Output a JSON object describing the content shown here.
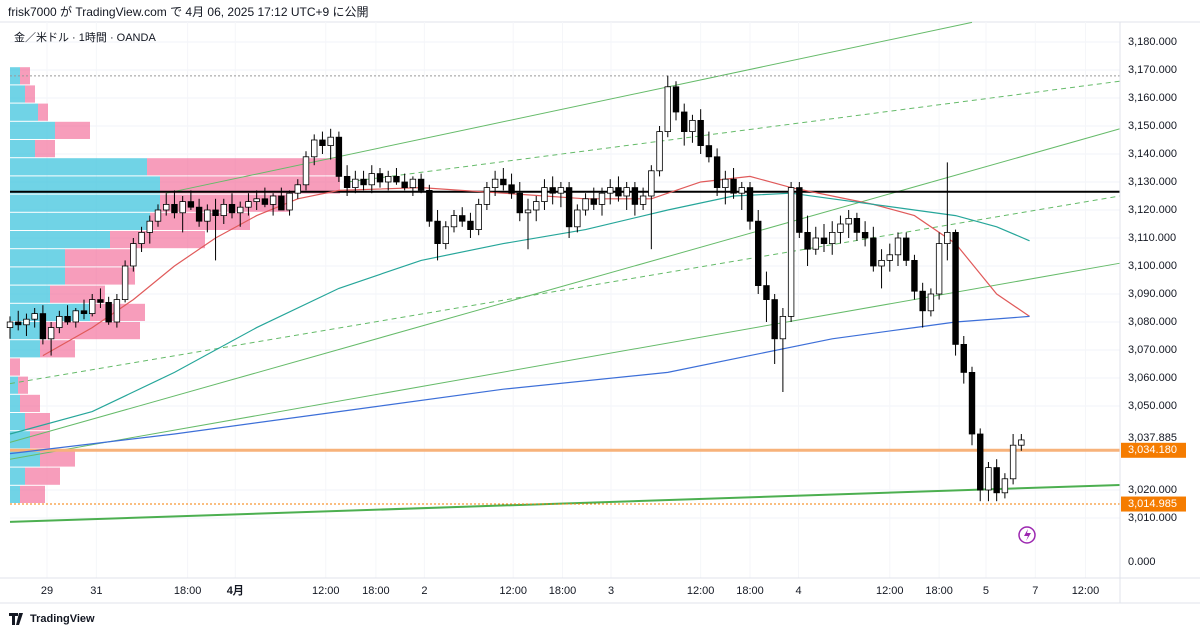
{
  "header": "frisk7000 が TradingView.com で 4月 06, 2025 17:12 UTC+9 に公開",
  "footer": "TradingView",
  "chart_data": {
    "type": "candlestick",
    "title": "金／米ドル · 1時間 · OANDA",
    "xlim": [
      0,
      135
    ],
    "ylim": [
      2988.57,
      3187.14
    ],
    "xticks": [
      {
        "value": 4.5,
        "label": "29"
      },
      {
        "value": 10.5,
        "label": "31"
      },
      {
        "value": 21.6,
        "label": "18:00"
      },
      {
        "value": 27.4,
        "label": "4月"
      },
      {
        "value": 38.4,
        "label": "12:00"
      },
      {
        "value": 44.5,
        "label": "18:00"
      },
      {
        "value": 50.4,
        "label": "2"
      },
      {
        "value": 61.2,
        "label": "12:00"
      },
      {
        "value": 67.2,
        "label": "18:00"
      },
      {
        "value": 73.1,
        "label": "3"
      },
      {
        "value": 84,
        "label": "12:00"
      },
      {
        "value": 90,
        "label": "18:00"
      },
      {
        "value": 95.9,
        "label": "4"
      },
      {
        "value": 107,
        "label": "12:00"
      },
      {
        "value": 113,
        "label": "18:00"
      },
      {
        "value": 118.7,
        "label": "5"
      },
      {
        "value": 124.7,
        "label": "7"
      },
      {
        "value": 130.8,
        "label": "12:00"
      }
    ],
    "yticks": [
      {
        "value": 3180,
        "label": "3,180.000"
      },
      {
        "value": 3170,
        "label": "3,170.000"
      },
      {
        "value": 3160,
        "label": "3,160.000"
      },
      {
        "value": 3150,
        "label": "3,150.000"
      },
      {
        "value": 3140,
        "label": "3,140.000"
      },
      {
        "value": 3130,
        "label": "3,130.000"
      },
      {
        "value": 3120,
        "label": "3,120.000"
      },
      {
        "value": 3110,
        "label": "3,110.000"
      },
      {
        "value": 3100,
        "label": "3,100.000"
      },
      {
        "value": 3090,
        "label": "3,090.000"
      },
      {
        "value": 3080,
        "label": "3,080.000"
      },
      {
        "value": 3070,
        "label": "3,070.000"
      },
      {
        "value": 3060,
        "label": "3,060.000"
      },
      {
        "value": 3050,
        "label": "3,050.000"
      },
      {
        "value": 3020,
        "label": "3,020.000"
      },
      {
        "value": 3010,
        "label": "3,010.000"
      }
    ],
    "volume_axis_ticks": [
      {
        "value": 0,
        "label": "0.000"
      }
    ],
    "grid": true,
    "up_color": "#ffffff",
    "down_color": "#000000",
    "wick_color": "#000000",
    "candles": [
      [
        0,
        3078,
        3082,
        3074,
        3080
      ],
      [
        1,
        3080,
        3084,
        3077,
        3079
      ],
      [
        2,
        3079,
        3083,
        3075,
        3081
      ],
      [
        3,
        3081,
        3085,
        3078,
        3083
      ],
      [
        4,
        3083,
        3086,
        3072,
        3074
      ],
      [
        5,
        3074,
        3080,
        3068,
        3078
      ],
      [
        6,
        3078,
        3084,
        3076,
        3082
      ],
      [
        7,
        3082,
        3086,
        3079,
        3080
      ],
      [
        8,
        3080,
        3085,
        3078,
        3084
      ],
      [
        9,
        3084,
        3088,
        3081,
        3083
      ],
      [
        10,
        3083,
        3090,
        3082,
        3088
      ],
      [
        11,
        3088,
        3092,
        3085,
        3087
      ],
      [
        12,
        3087,
        3089,
        3079,
        3080
      ],
      [
        13,
        3080,
        3090,
        3078,
        3088
      ],
      [
        14,
        3088,
        3102,
        3087,
        3100
      ],
      [
        15,
        3100,
        3110,
        3098,
        3108
      ],
      [
        16,
        3108,
        3114,
        3105,
        3112
      ],
      [
        17,
        3112,
        3118,
        3108,
        3116
      ],
      [
        18,
        3116,
        3122,
        3114,
        3120
      ],
      [
        19,
        3120,
        3126,
        3118,
        3122
      ],
      [
        20,
        3122,
        3127,
        3117,
        3119
      ],
      [
        21,
        3119,
        3125,
        3112,
        3123
      ],
      [
        22,
        3123,
        3127,
        3120,
        3121
      ],
      [
        23,
        3121,
        3124,
        3114,
        3116
      ],
      [
        24,
        3116,
        3122,
        3112,
        3120
      ],
      [
        25,
        3120,
        3124,
        3102,
        3118
      ],
      [
        26,
        3118,
        3124,
        3115,
        3122
      ],
      [
        27,
        3122,
        3126,
        3117,
        3119
      ],
      [
        28,
        3119,
        3123,
        3114,
        3121
      ],
      [
        29,
        3121,
        3126,
        3118,
        3123
      ],
      [
        30,
        3123,
        3127,
        3120,
        3124
      ],
      [
        31,
        3124,
        3128,
        3121,
        3122
      ],
      [
        32,
        3122,
        3126,
        3118,
        3125
      ],
      [
        33,
        3125,
        3128,
        3121,
        3120
      ],
      [
        34,
        3120,
        3127,
        3118,
        3126
      ],
      [
        35,
        3126,
        3131,
        3124,
        3129
      ],
      [
        36,
        3129,
        3141,
        3127,
        3139
      ],
      [
        37,
        3139,
        3147,
        3136,
        3145
      ],
      [
        38,
        3145,
        3148,
        3140,
        3143
      ],
      [
        39,
        3143,
        3149,
        3138,
        3146
      ],
      [
        40,
        3146,
        3148,
        3130,
        3132
      ],
      [
        41,
        3132,
        3136,
        3125,
        3128
      ],
      [
        42,
        3128,
        3134,
        3126,
        3131
      ],
      [
        43,
        3131,
        3134,
        3127,
        3129
      ],
      [
        44,
        3129,
        3136,
        3126,
        3133
      ],
      [
        45,
        3133,
        3135,
        3128,
        3130
      ],
      [
        46,
        3130,
        3134,
        3127,
        3132
      ],
      [
        47,
        3132,
        3135,
        3129,
        3130
      ],
      [
        48,
        3130,
        3133,
        3127,
        3128
      ],
      [
        49,
        3128,
        3132,
        3125,
        3131
      ],
      [
        50,
        3131,
        3133,
        3126,
        3127
      ],
      [
        51,
        3127,
        3129,
        3114,
        3116
      ],
      [
        52,
        3116,
        3120,
        3102,
        3108
      ],
      [
        53,
        3108,
        3116,
        3106,
        3114
      ],
      [
        54,
        3114,
        3120,
        3112,
        3118
      ],
      [
        55,
        3118,
        3121,
        3114,
        3116
      ],
      [
        56,
        3116,
        3119,
        3110,
        3113
      ],
      [
        57,
        3113,
        3124,
        3111,
        3122
      ],
      [
        58,
        3122,
        3130,
        3120,
        3128
      ],
      [
        59,
        3128,
        3134,
        3125,
        3131
      ],
      [
        60,
        3131,
        3135,
        3127,
        3129
      ],
      [
        61,
        3129,
        3133,
        3124,
        3126
      ],
      [
        62,
        3126,
        3130,
        3116,
        3119
      ],
      [
        63,
        3119,
        3124,
        3106,
        3120
      ],
      [
        64,
        3120,
        3125,
        3116,
        3123
      ],
      [
        65,
        3123,
        3131,
        3120,
        3128
      ],
      [
        66,
        3128,
        3132,
        3122,
        3126
      ],
      [
        67,
        3126,
        3130,
        3121,
        3128
      ],
      [
        68,
        3128,
        3130,
        3110,
        3114
      ],
      [
        69,
        3114,
        3122,
        3112,
        3120
      ],
      [
        70,
        3120,
        3126,
        3118,
        3124
      ],
      [
        71,
        3124,
        3128,
        3120,
        3122
      ],
      [
        72,
        3122,
        3128,
        3118,
        3126
      ],
      [
        73,
        3126,
        3131,
        3122,
        3128
      ],
      [
        74,
        3128,
        3132,
        3123,
        3125
      ],
      [
        75,
        3125,
        3130,
        3120,
        3128
      ],
      [
        76,
        3128,
        3130,
        3118,
        3122
      ],
      [
        77,
        3122,
        3128,
        3120,
        3125
      ],
      [
        78,
        3125,
        3136,
        3106,
        3134
      ],
      [
        79,
        3134,
        3150,
        3132,
        3148
      ],
      [
        80,
        3148,
        3168,
        3146,
        3164
      ],
      [
        81,
        3164,
        3166,
        3152,
        3155
      ],
      [
        82,
        3155,
        3158,
        3143,
        3148
      ],
      [
        83,
        3148,
        3154,
        3144,
        3152
      ],
      [
        84,
        3152,
        3156,
        3140,
        3143
      ],
      [
        85,
        3143,
        3148,
        3137,
        3139
      ],
      [
        86,
        3139,
        3142,
        3125,
        3128
      ],
      [
        87,
        3128,
        3134,
        3122,
        3131
      ],
      [
        88,
        3131,
        3135,
        3124,
        3126
      ],
      [
        89,
        3126,
        3130,
        3120,
        3128
      ],
      [
        90,
        3128,
        3130,
        3113,
        3116
      ],
      [
        91,
        3116,
        3120,
        3090,
        3093
      ],
      [
        92,
        3093,
        3098,
        3080,
        3088
      ],
      [
        93,
        3088,
        3090,
        3065,
        3074
      ],
      [
        94,
        3074,
        3085,
        3055,
        3082
      ],
      [
        95,
        3082,
        3130,
        3080,
        3128
      ],
      [
        96,
        3128,
        3130,
        3110,
        3112
      ],
      [
        97,
        3112,
        3118,
        3100,
        3106
      ],
      [
        98,
        3106,
        3114,
        3104,
        3110
      ],
      [
        99,
        3110,
        3115,
        3105,
        3108
      ],
      [
        100,
        3108,
        3116,
        3104,
        3112
      ],
      [
        101,
        3112,
        3118,
        3108,
        3115
      ],
      [
        102,
        3115,
        3120,
        3110,
        3117
      ],
      [
        103,
        3117,
        3119,
        3109,
        3112
      ],
      [
        104,
        3112,
        3116,
        3107,
        3110
      ],
      [
        105,
        3110,
        3114,
        3098,
        3100
      ],
      [
        106,
        3100,
        3106,
        3092,
        3102
      ],
      [
        107,
        3102,
        3108,
        3098,
        3104
      ],
      [
        108,
        3104,
        3112,
        3100,
        3110
      ],
      [
        109,
        3110,
        3112,
        3100,
        3102
      ],
      [
        110,
        3102,
        3104,
        3088,
        3091
      ],
      [
        111,
        3091,
        3094,
        3078,
        3084
      ],
      [
        112,
        3084,
        3092,
        3082,
        3090
      ],
      [
        113,
        3090,
        3112,
        3088,
        3108
      ],
      [
        114,
        3108,
        3137,
        3102,
        3112
      ],
      [
        115,
        3112,
        3113,
        3068,
        3072
      ],
      [
        116,
        3072,
        3075,
        3058,
        3062
      ],
      [
        117,
        3062,
        3064,
        3036,
        3040
      ],
      [
        118,
        3040,
        3042,
        3016,
        3020
      ],
      [
        119,
        3020,
        3030,
        3016,
        3028
      ],
      [
        120,
        3028,
        3031,
        3016,
        3019
      ],
      [
        121,
        3019,
        3026,
        3017,
        3024
      ],
      [
        122,
        3024,
        3040,
        3022,
        3036
      ],
      [
        123,
        3036,
        3040,
        3034,
        3037.885
      ]
    ],
    "moving_averages": [
      {
        "color": "#e05a5a",
        "x": [
          4,
          10,
          15,
          20,
          25,
          30,
          35,
          40,
          50,
          60,
          70,
          78,
          84,
          90,
          95,
          100,
          105,
          110,
          115,
          120,
          124
        ],
        "values": [
          3068,
          3078,
          3088,
          3100,
          3110,
          3118,
          3124,
          3127,
          3128,
          3126,
          3124,
          3124,
          3130,
          3132,
          3128,
          3125,
          3122,
          3118,
          3108,
          3090,
          3082
        ]
      },
      {
        "color": "#26a69a",
        "x": [
          0,
          10,
          20,
          30,
          40,
          50,
          60,
          70,
          80,
          88,
          95,
          100,
          110,
          115,
          120,
          124
        ],
        "values": [
          3040,
          3048,
          3062,
          3078,
          3092,
          3102,
          3108,
          3113,
          3120,
          3125,
          3126,
          3124,
          3120,
          3118,
          3114,
          3109
        ]
      },
      {
        "color": "#3d6fd8",
        "x": [
          0,
          20,
          40,
          60,
          80,
          90,
          100,
          110,
          115,
          124
        ],
        "values": [
          3033,
          3040,
          3048,
          3056,
          3062,
          3068,
          3074,
          3078,
          3080,
          3082
        ]
      }
    ],
    "trend_lines": [
      {
        "color": "#66bb6a",
        "dashed": false,
        "x": [
          19,
          117
        ],
        "values": [
          3126,
          3187
        ]
      },
      {
        "color": "#66bb6a",
        "dashed": true,
        "x": [
          41,
          135
        ],
        "values": [
          3130,
          3166
        ]
      },
      {
        "color": "#66bb6a",
        "dashed": false,
        "x": [
          0,
          135
        ],
        "values": [
          3037,
          3149
        ]
      },
      {
        "color": "#66bb6a",
        "dashed": true,
        "x": [
          0,
          135
        ],
        "values": [
          3058,
          3125
        ]
      },
      {
        "color": "#66bb6a",
        "dashed": false,
        "x": [
          0,
          135
        ],
        "values": [
          3031,
          3101
        ]
      },
      {
        "color": "#4caf50",
        "dashed": false,
        "x": [
          0,
          135
        ],
        "values": [
          3008.6,
          3021.8
        ]
      }
    ],
    "horizontal_lines": [
      {
        "value": 3126.5,
        "color": "#000000",
        "style": "solid"
      },
      {
        "value": 3034.18,
        "color": "#f7b27a",
        "style": "thick"
      },
      {
        "value": 3014.985,
        "color": "#f57c00",
        "style": "dotted"
      },
      {
        "value": 3167.9,
        "color": "#999999",
        "style": "dotted"
      }
    ],
    "price_labels": [
      {
        "value": 3037.885,
        "label": "3,037.885",
        "box": false
      },
      {
        "value": 3034.18,
        "label": "3,034.180",
        "box": true,
        "color": "#f57c00"
      },
      {
        "value": 3014.985,
        "label": "3,014.985",
        "box": true,
        "color": "#f57c00"
      }
    ],
    "volume_profile": {
      "up_color": "rgba(64,196,222,0.75)",
      "down_color": "rgba(242,104,150,0.65)",
      "edges": [
        3171,
        3164.5,
        3158,
        3151.5,
        3145,
        3138.5,
        3132,
        3125.5,
        3119,
        3112.5,
        3106,
        3099.5,
        3093,
        3086.5,
        3080,
        3073.5,
        3067,
        3060.5,
        3054,
        3047.5,
        3041,
        3034.5,
        3028,
        3021.5,
        3015
      ],
      "up": [
        10,
        15,
        28,
        45,
        25,
        137,
        150,
        150,
        140,
        100,
        55,
        55,
        40,
        80,
        30,
        30,
        0,
        8,
        10,
        15,
        20,
        30,
        15,
        10
      ],
      "down": [
        10,
        10,
        10,
        35,
        20,
        195,
        180,
        130,
        100,
        95,
        70,
        70,
        55,
        55,
        100,
        35,
        10,
        10,
        20,
        25,
        20,
        35,
        35,
        25
      ]
    }
  }
}
